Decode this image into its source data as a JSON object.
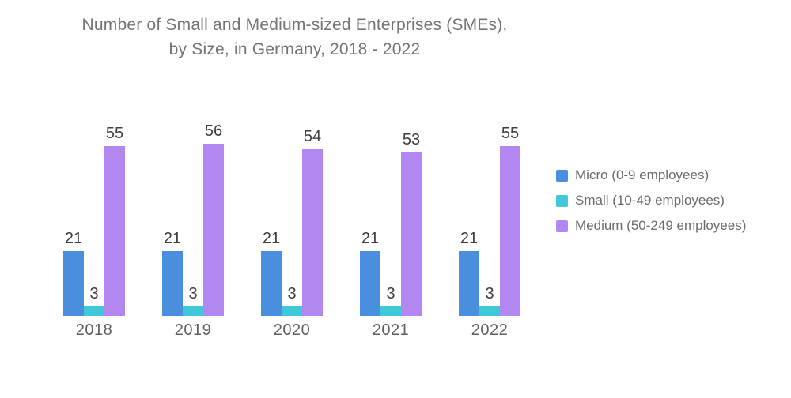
{
  "page": {
    "background": "#ffffff"
  },
  "chart_data": {
    "type": "bar",
    "title_line1": "Number of Small and Medium-sized Enterprises (SMEs),",
    "title_line2": "by Size, in Germany, 2018 - 2022",
    "categories": [
      "2018",
      "2019",
      "2020",
      "2021",
      "2022"
    ],
    "series": [
      {
        "name": "Micro (0-9 employees)",
        "key": "micro",
        "color": "#4A8FDD",
        "values": [
          21,
          21,
          21,
          21,
          21
        ]
      },
      {
        "name": "Small (10-49 employees)",
        "key": "small",
        "color": "#3FC8D8",
        "values": [
          3,
          3,
          3,
          3,
          3
        ]
      },
      {
        "name": "Medium (50-249 employees)",
        "key": "medium",
        "color": "#B287F2",
        "values": [
          55,
          56,
          54,
          53,
          55
        ]
      }
    ],
    "value_labels": true,
    "legend_position": "right",
    "grid": false,
    "axes_hidden": true,
    "ylim": [
      0,
      56
    ]
  },
  "colors": {
    "title_text": "#747474",
    "value_label_text": "#3E3E3E",
    "year_label_text": "#5F5F5F",
    "legend_text": "#6B6B6B"
  }
}
